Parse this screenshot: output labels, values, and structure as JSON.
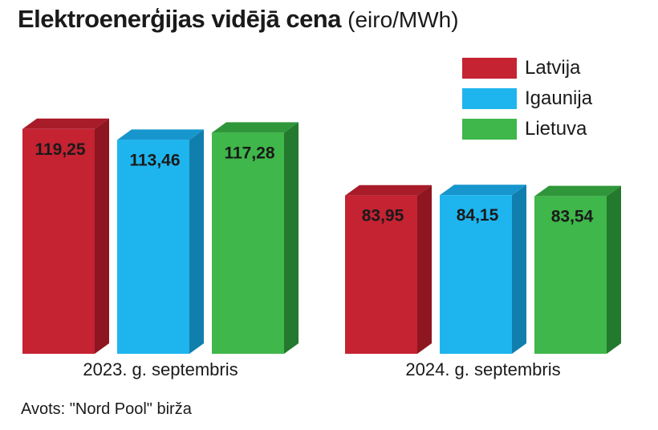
{
  "title": "Elektroenerģijas vidējā cena",
  "unit": "(eiro/MWh)",
  "source": "Avots: \"Nord Pool\" birža",
  "chart_data": {
    "type": "bar",
    "categories": [
      "2023. g. septembris",
      "2024. g. septembris"
    ],
    "series": [
      {
        "name": "Latvija",
        "values": [
          119.25,
          83.95
        ],
        "value_labels": [
          "119,25",
          "83,95"
        ],
        "color": "#c52232",
        "side_color": "#8e1620",
        "top_color": "#a81b28"
      },
      {
        "name": "Igaunija",
        "values": [
          113.46,
          84.15
        ],
        "value_labels": [
          "113,46",
          "84,15"
        ],
        "color": "#1eb5ef",
        "side_color": "#117fae",
        "top_color": "#1696cc"
      },
      {
        "name": "Lietuva",
        "values": [
          117.28,
          83.54
        ],
        "value_labels": [
          "117,28",
          "83,54"
        ],
        "color": "#3fb74a",
        "side_color": "#23792d",
        "top_color": "#2f963a"
      }
    ],
    "ylim": [
      0,
      125
    ],
    "grid": false,
    "legend": "top-right"
  }
}
